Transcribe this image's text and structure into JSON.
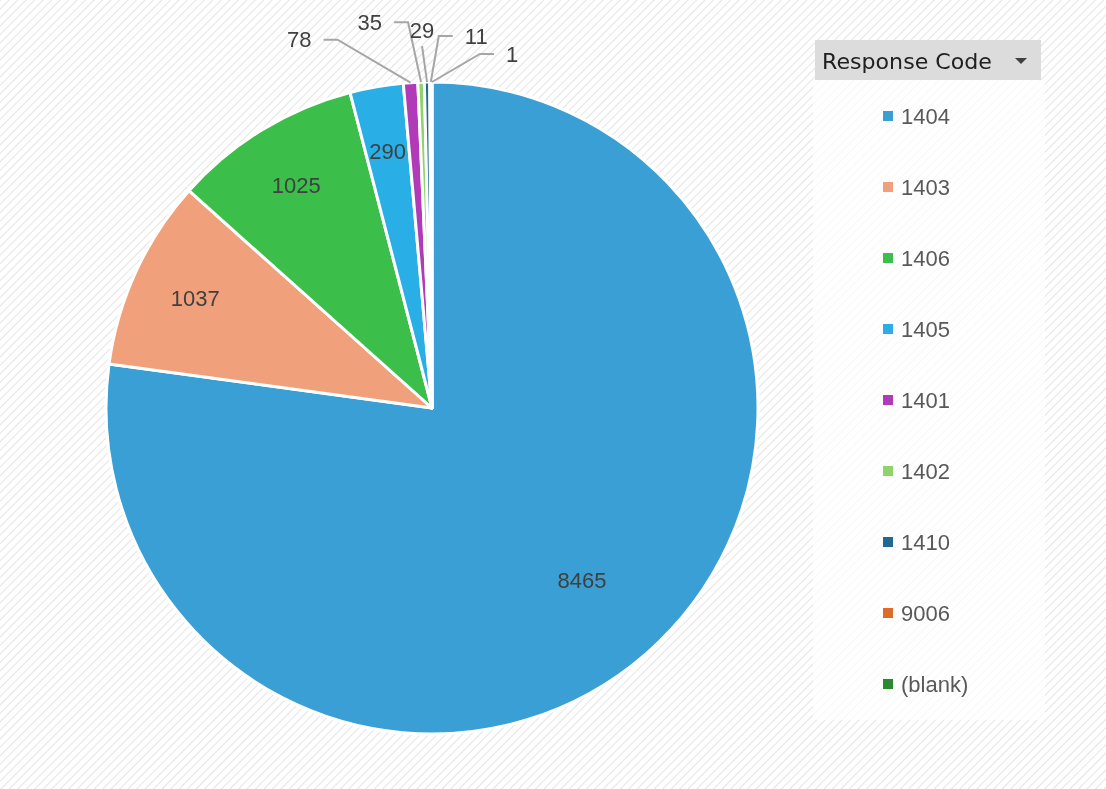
{
  "chart_data": {
    "type": "pie",
    "legend_title": "Response Code",
    "legend": "right",
    "data_labels": true,
    "categories": [
      "1404",
      "1403",
      "1406",
      "1405",
      "1401",
      "1402",
      "1410",
      "9006",
      "(blank)"
    ],
    "values": [
      8465,
      1037,
      1025,
      290,
      78,
      35,
      29,
      11,
      1
    ],
    "colors": [
      "#3a9fd4",
      "#f0a07a",
      "#3cbf4a",
      "#2aaee6",
      "#b03ab8",
      "#8fd46a",
      "#1f6a94",
      "#e06a2a",
      "#2a8a30"
    ]
  }
}
